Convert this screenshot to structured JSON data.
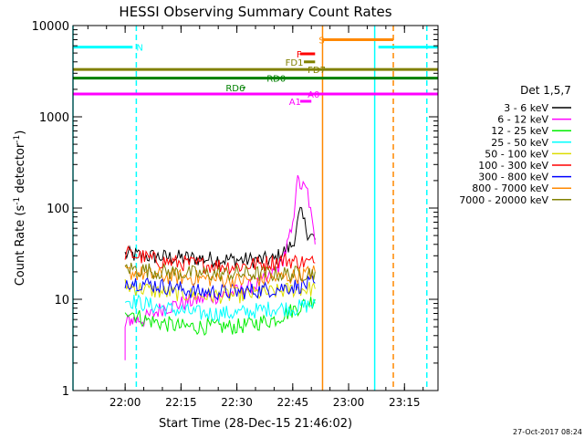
{
  "chart_data": {
    "type": "line",
    "title": "HESSI Observing Summary Count Rates",
    "xlabel": "Start Time (28-Dec-15 21:46:02)",
    "ylabel": "Count Rate (s⁻¹ detector⁻¹)",
    "ylabel_parts": {
      "main": "Count Rate (s",
      "sup1": "-1",
      "mid": " detector",
      "sup2": "-1",
      "end": ")"
    },
    "y_scale": "log",
    "ylim": [
      1,
      10000
    ],
    "xlim": [
      "21:46",
      "23:24"
    ],
    "x_ticks": [
      "22:00",
      "22:15",
      "22:30",
      "22:45",
      "23:00",
      "23:15"
    ],
    "y_ticks": [
      "1",
      "10",
      "100",
      "1000",
      "10000"
    ],
    "grid": false,
    "legend_title": "Det 1,5,7",
    "legend_position": "right",
    "footer_timestamp": "27-Oct-2017 08:24",
    "series": [
      {
        "name": "3 - 6 keV",
        "color": "#000000",
        "points": [
          [
            "22:00",
            31
          ],
          [
            "22:10",
            29
          ],
          [
            "22:20",
            28
          ],
          [
            "22:30",
            27
          ],
          [
            "22:40",
            27
          ],
          [
            "22:45",
            40
          ],
          [
            "22:47",
            90
          ],
          [
            "22:49",
            55
          ],
          [
            "22:51",
            45
          ]
        ]
      },
      {
        "name": "6 - 12 keV",
        "color": "#ff00ff",
        "points": [
          [
            "22:00",
            2
          ],
          [
            "22:00",
            5
          ],
          [
            "22:01",
            6
          ],
          [
            "22:02",
            6
          ],
          [
            "22:03",
            6
          ],
          [
            "22:04",
            6
          ],
          [
            "22:05",
            6
          ],
          [
            "22:10",
            8
          ],
          [
            "22:20",
            10
          ],
          [
            "22:30",
            12
          ],
          [
            "22:38",
            16
          ],
          [
            "22:42",
            25
          ],
          [
            "22:45",
            60
          ],
          [
            "22:46",
            200
          ],
          [
            "22:47",
            180
          ],
          [
            "22:49",
            150
          ],
          [
            "22:51",
            40
          ]
        ]
      },
      {
        "name": "12 - 25 keV",
        "color": "#00ee00",
        "points": [
          [
            "22:00",
            8
          ],
          [
            "22:05",
            6
          ],
          [
            "22:15",
            5
          ],
          [
            "22:30",
            5
          ],
          [
            "22:40",
            6
          ],
          [
            "22:46",
            8
          ],
          [
            "22:51",
            10
          ]
        ]
      },
      {
        "name": "25 - 50 keV",
        "color": "#00ffff",
        "points": [
          [
            "22:00",
            10
          ],
          [
            "22:10",
            8
          ],
          [
            "22:20",
            7
          ],
          [
            "22:30",
            7
          ],
          [
            "22:40",
            8
          ],
          [
            "22:46",
            8
          ],
          [
            "22:51",
            9
          ]
        ]
      },
      {
        "name": "50 - 100 keV",
        "color": "#dddd00",
        "points": [
          [
            "22:00",
            14
          ],
          [
            "22:10",
            12
          ],
          [
            "22:20",
            11
          ],
          [
            "22:30",
            11
          ],
          [
            "22:40",
            12
          ],
          [
            "22:46",
            13
          ],
          [
            "22:51",
            13
          ]
        ]
      },
      {
        "name": "100 - 300 keV",
        "color": "#ff0000",
        "points": [
          [
            "22:00",
            32
          ],
          [
            "22:10",
            26
          ],
          [
            "22:20",
            24
          ],
          [
            "22:30",
            23
          ],
          [
            "22:38",
            25
          ],
          [
            "22:43",
            27
          ],
          [
            "22:46",
            26
          ],
          [
            "22:51",
            25
          ]
        ]
      },
      {
        "name": "300 - 800 keV",
        "color": "#0000ff",
        "points": [
          [
            "22:00",
            16
          ],
          [
            "22:10",
            14
          ],
          [
            "22:20",
            12
          ],
          [
            "22:30",
            12
          ],
          [
            "22:40",
            13
          ],
          [
            "22:46",
            14
          ],
          [
            "22:51",
            15
          ]
        ]
      },
      {
        "name": "800 - 7000 keV",
        "color": "#ff8800",
        "points": [
          [
            "22:00",
            20
          ],
          [
            "22:10",
            18
          ],
          [
            "22:20",
            17
          ],
          [
            "22:30",
            16
          ],
          [
            "22:40",
            17
          ],
          [
            "22:46",
            18
          ],
          [
            "22:51",
            20
          ]
        ]
      },
      {
        "name": "7000 - 20000 keV",
        "color": "#808000",
        "points": [
          [
            "22:00",
            22
          ],
          [
            "22:10",
            20
          ],
          [
            "22:20",
            19
          ],
          [
            "22:30",
            19
          ],
          [
            "22:40",
            19
          ],
          [
            "22:46",
            19
          ],
          [
            "22:51",
            20
          ]
        ]
      }
    ],
    "flag_bars": [
      {
        "label": "N",
        "color": "#00ffff",
        "y": 5800,
        "segments": [
          [
            "21:46",
            "22:02"
          ],
          [
            "23:08",
            "23:24"
          ]
        ],
        "label_time": "22:03"
      },
      {
        "label": "S",
        "color": "#ff8800",
        "y": 7000,
        "segments": [
          [
            "22:53",
            "23:12"
          ]
        ],
        "label_time": "22:52"
      },
      {
        "label": "F",
        "color": "#ff0000",
        "y": 4900,
        "segments": [
          [
            "22:47",
            "22:51"
          ]
        ],
        "label_time": "22:46"
      },
      {
        "label": "FD1",
        "color": "#808000",
        "y": 4000,
        "segments": [
          [
            "22:48",
            "22:51"
          ]
        ],
        "label_time": "22:43"
      },
      {
        "label": "FD7",
        "color": "#808000",
        "y": 3300,
        "segments": [
          [
            "21:46",
            "23:24"
          ]
        ],
        "label_time": "22:49"
      },
      {
        "label": "RD0",
        "color": "#008000",
        "y": 2650,
        "segments": [
          [
            "21:46",
            "23:24"
          ]
        ],
        "label_time": "22:38"
      },
      {
        "label": "RD6",
        "color": "#008000",
        "y": 2100,
        "segments": [],
        "label_time": "22:27"
      },
      {
        "label": "A0",
        "color": "#ff00ff",
        "y": 1780,
        "segments": [
          [
            "21:46",
            "23:24"
          ]
        ],
        "label_time": "22:49"
      },
      {
        "label": "A1",
        "color": "#ff00ff",
        "y": 1480,
        "segments": [
          [
            "22:47",
            "22:50"
          ]
        ],
        "label_time": "22:44"
      }
    ],
    "vertical_markers": [
      {
        "time": "21:46",
        "color": "#00ffff",
        "style": "solid"
      },
      {
        "time": "22:03",
        "color": "#00ffff",
        "style": "dashed"
      },
      {
        "time": "22:53",
        "color": "#ff8800",
        "style": "solid"
      },
      {
        "time": "23:07",
        "color": "#00ffff",
        "style": "solid"
      },
      {
        "time": "23:12",
        "color": "#ff8800",
        "style": "dashed"
      },
      {
        "time": "23:21",
        "color": "#00ffff",
        "style": "dashed"
      }
    ]
  }
}
